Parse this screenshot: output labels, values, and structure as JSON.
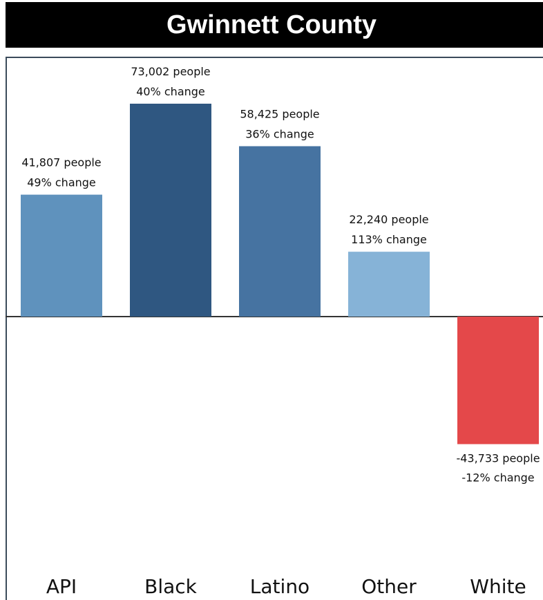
{
  "header": {
    "title": "Gwinnett County"
  },
  "chart_data": {
    "type": "bar",
    "title": "Gwinnett County",
    "categories": [
      "API",
      "Black",
      "Latino",
      "Other",
      "White"
    ],
    "values": [
      41807,
      73002,
      58425,
      22240,
      -43733
    ],
    "percent_change": [
      49,
      40,
      36,
      113,
      -12
    ],
    "labels": [
      [
        "41,807 people",
        "49% change"
      ],
      [
        "73,002 people",
        "40% change"
      ],
      [
        "58,425 people",
        "36% change"
      ],
      [
        "22,240 people",
        "113% change"
      ],
      [
        "-43,733 people",
        "-12% change"
      ]
    ],
    "colors": [
      "#5f92bd",
      "#2f5781",
      "#4673a1",
      "#86b3d7",
      "#e4484a"
    ],
    "ylim": [
      -73000,
      73002
    ],
    "xlabel": "",
    "ylabel": "",
    "grid": false,
    "legend": "none"
  }
}
